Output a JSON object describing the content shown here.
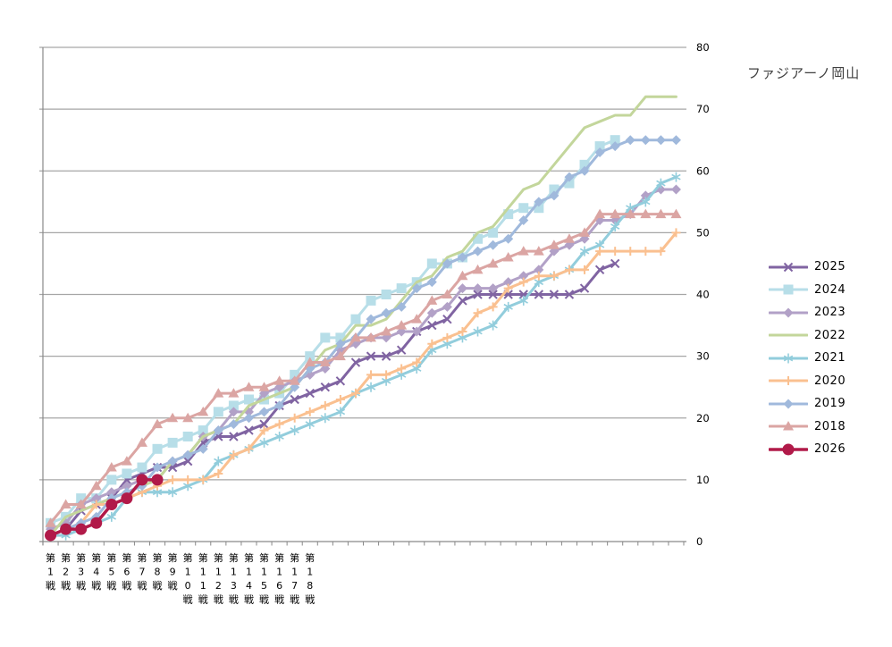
{
  "title": "ファジアーノ岡山",
  "chart_data": {
    "type": "line",
    "title": "ファジアーノ岡山",
    "x_axis": {
      "total_categories": 42,
      "labels_shown": [
        "第1戦",
        "第2戦",
        "第3戦",
        "第4戦",
        "第5戦",
        "第6戦",
        "第7戦",
        "第8戦",
        "第9戦",
        "第10戦",
        "第11戦",
        "第12戦",
        "第13戦",
        "第14戦",
        "第15戦",
        "第16戦",
        "第17戦",
        "第18戦"
      ],
      "tick_marks": "every-category"
    },
    "y_axis": {
      "min": 0,
      "max": 80,
      "step": 10,
      "tick_labels": [
        "0",
        "10",
        "20",
        "30",
        "40",
        "50",
        "60",
        "70",
        "80"
      ],
      "side": "right",
      "grid": true
    },
    "legend_position": "right",
    "legend_order": [
      "2025",
      "2024",
      "2023",
      "2022",
      "2021",
      "2020",
      "2019",
      "2018",
      "2026"
    ],
    "series": [
      {
        "name": "2025",
        "color": "#8064A2",
        "marker": "x",
        "line_width": 3,
        "values": [
          1,
          2,
          5,
          6,
          7,
          10,
          11,
          12,
          12,
          13,
          16,
          17,
          17,
          18,
          19,
          22,
          23,
          24,
          25,
          26,
          29,
          30,
          30,
          31,
          34,
          35,
          36,
          39,
          40,
          40,
          40,
          40,
          40,
          40,
          40,
          41,
          44,
          45
        ]
      },
      {
        "name": "2024",
        "color": "#B7DEE8",
        "marker": "square",
        "line_width": 3,
        "values": [
          3,
          4,
          7,
          7,
          10,
          11,
          12,
          15,
          16,
          17,
          18,
          21,
          22,
          23,
          23,
          24,
          27,
          30,
          33,
          33,
          36,
          39,
          40,
          41,
          42,
          45,
          45,
          46,
          49,
          50,
          53,
          54,
          54,
          57,
          58,
          61,
          64,
          65
        ]
      },
      {
        "name": "2023",
        "color": "#B2A1C7",
        "marker": "diamond",
        "line_width": 3,
        "values": [
          2,
          3,
          6,
          7,
          8,
          9,
          10,
          10,
          13,
          14,
          17,
          18,
          21,
          21,
          24,
          25,
          26,
          27,
          28,
          31,
          32,
          33,
          33,
          34,
          34,
          37,
          38,
          41,
          41,
          41,
          42,
          43,
          44,
          47,
          48,
          49,
          52,
          52,
          53,
          56,
          57,
          57
        ]
      },
      {
        "name": "2022",
        "color": "#C3D69B",
        "marker": "none",
        "line_width": 3,
        "values": [
          1,
          4,
          5,
          6,
          7,
          8,
          9,
          10,
          13,
          14,
          17,
          18,
          19,
          22,
          23,
          24,
          25,
          28,
          31,
          32,
          35,
          35,
          36,
          39,
          42,
          43,
          46,
          47,
          50,
          51,
          54,
          57,
          58,
          61,
          64,
          67,
          68,
          69,
          69,
          72,
          72,
          72
        ]
      },
      {
        "name": "2021",
        "color": "#92CDDC",
        "marker": "asterisk",
        "line_width": 3,
        "values": [
          1,
          1,
          2,
          3,
          4,
          7,
          8,
          8,
          8,
          9,
          10,
          13,
          14,
          15,
          16,
          17,
          18,
          19,
          20,
          21,
          24,
          25,
          26,
          27,
          28,
          31,
          32,
          33,
          34,
          35,
          38,
          39,
          42,
          43,
          44,
          47,
          48,
          51,
          54,
          55,
          58,
          59
        ]
      },
      {
        "name": "2020",
        "color": "#FAC090",
        "marker": "plus",
        "line_width": 3,
        "values": [
          1,
          2,
          3,
          6,
          6,
          7,
          8,
          9,
          10,
          10,
          10,
          11,
          14,
          15,
          18,
          19,
          20,
          21,
          22,
          23,
          24,
          27,
          27,
          28,
          29,
          32,
          33,
          34,
          37,
          38,
          41,
          42,
          43,
          43,
          44,
          44,
          47,
          47,
          47,
          47,
          47,
          50
        ]
      },
      {
        "name": "2019",
        "color": "#A0B9DC",
        "marker": "diamond",
        "line_width": 3,
        "values": [
          1,
          2,
          3,
          4,
          7,
          8,
          9,
          12,
          13,
          14,
          15,
          18,
          19,
          20,
          21,
          22,
          25,
          28,
          29,
          32,
          33,
          36,
          37,
          38,
          41,
          42,
          45,
          46,
          47,
          48,
          49,
          52,
          55,
          56,
          59,
          60,
          63,
          64,
          65,
          65,
          65,
          65
        ]
      },
      {
        "name": "2018",
        "color": "#DBA5A3",
        "marker": "triangle",
        "line_width": 3,
        "values": [
          3,
          6,
          6,
          9,
          12,
          13,
          16,
          19,
          20,
          20,
          21,
          24,
          24,
          25,
          25,
          26,
          26,
          29,
          29,
          30,
          33,
          33,
          34,
          35,
          36,
          39,
          40,
          43,
          44,
          45,
          46,
          47,
          47,
          48,
          49,
          50,
          53,
          53,
          53,
          53,
          53,
          53
        ]
      },
      {
        "name": "2026",
        "color": "#B11A49",
        "marker": "circle",
        "line_width": 3.5,
        "values": [
          1,
          2,
          2,
          3,
          6,
          7,
          10,
          10
        ]
      }
    ]
  },
  "colors": {
    "background": "#ffffff",
    "gridline": "#a6a6a6",
    "axis_line": "#898989",
    "axis_text": "#000000",
    "title_text": "#404040"
  }
}
